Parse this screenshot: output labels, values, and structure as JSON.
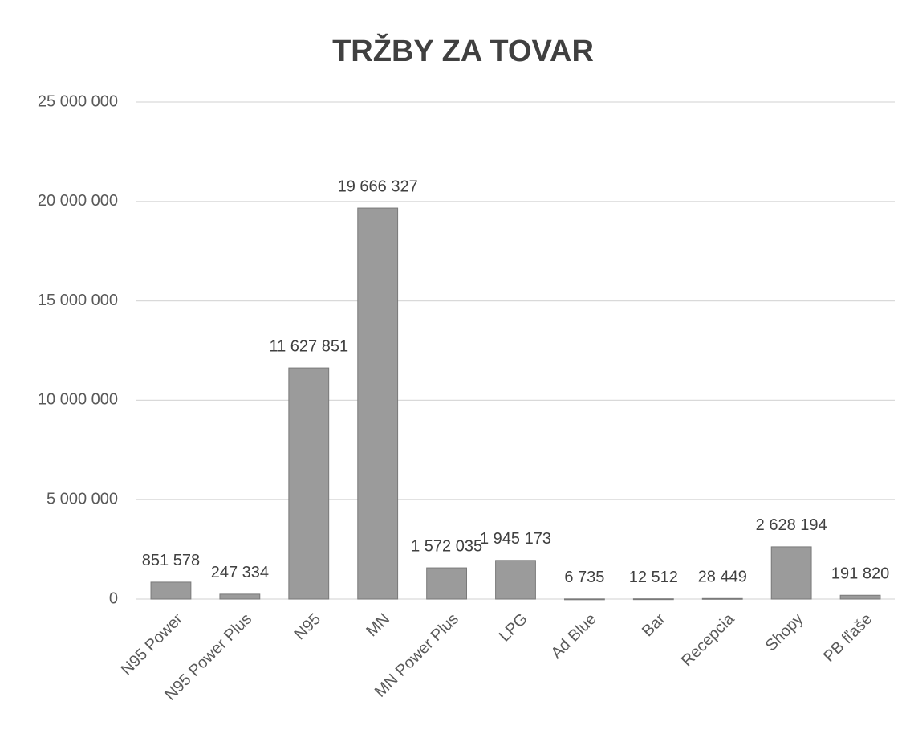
{
  "chart_data": {
    "type": "bar",
    "title": "TRŽBY ZA TOVAR",
    "categories": [
      "N95 Power",
      "N95 Power Plus",
      "N95",
      "MN",
      "MN Power Plus",
      "LPG",
      "Ad Blue",
      "Bar",
      "Recepcia",
      "Shopy",
      "PB fľaše"
    ],
    "values": [
      851578,
      247334,
      11627851,
      19666327,
      1572035,
      1945173,
      6735,
      12512,
      28449,
      2628194,
      191820
    ],
    "value_labels": [
      "851 578",
      "247 334",
      "11 627 851",
      "19 666 327",
      "1 572 035",
      "1 945 173",
      "6 735",
      "12 512",
      "28 449",
      "2 628 194",
      "191 820"
    ],
    "color": "#9b9b9b",
    "ylim": [
      0,
      25000000
    ],
    "yticks": [
      0,
      {
        "value": 5000000,
        "label": "5 000 000"
      },
      {
        "value": 10000000,
        "label": "10 000 000"
      },
      {
        "value": 15000000,
        "label": "15 000 000"
      },
      {
        "value": 20000000,
        "label": "20 000 000"
      },
      {
        "value": 25000000,
        "label": "25 000 000"
      }
    ],
    "grid": true
  }
}
